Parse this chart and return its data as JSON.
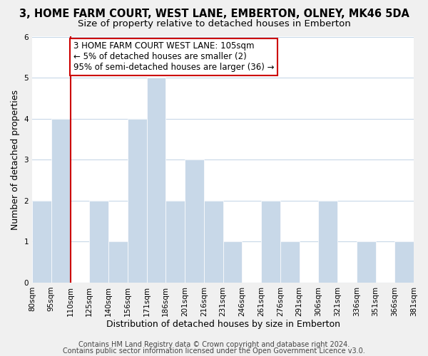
{
  "title": "3, HOME FARM COURT, WEST LANE, EMBERTON, OLNEY, MK46 5DA",
  "subtitle": "Size of property relative to detached houses in Emberton",
  "xlabel": "Distribution of detached houses by size in Emberton",
  "ylabel": "Number of detached properties",
  "bar_color": "#c8d8e8",
  "plot_bg_color": "#ffffff",
  "background_color": "#f0f0f0",
  "grid_color": "#c8d8e8",
  "vline_color": "#cc0000",
  "annotation_box_edge": "#cc0000",
  "annotation_box_color": "#ffffff",
  "bin_labels": [
    "80sqm",
    "95sqm",
    "110sqm",
    "125sqm",
    "140sqm",
    "156sqm",
    "171sqm",
    "186sqm",
    "201sqm",
    "216sqm",
    "231sqm",
    "246sqm",
    "261sqm",
    "276sqm",
    "291sqm",
    "306sqm",
    "321sqm",
    "336sqm",
    "351sqm",
    "366sqm",
    "381sqm"
  ],
  "bar_heights": [
    2,
    4,
    0,
    2,
    1,
    4,
    5,
    2,
    3,
    2,
    1,
    0,
    2,
    1,
    0,
    2,
    0,
    1,
    0,
    1
  ],
  "ylim": [
    0,
    6
  ],
  "yticks": [
    0,
    1,
    2,
    3,
    4,
    5,
    6
  ],
  "vline_position": 2,
  "annotation_text": "3 HOME FARM COURT WEST LANE: 105sqm\n← 5% of detached houses are smaller (2)\n95% of semi-detached houses are larger (36) →",
  "footer1": "Contains HM Land Registry data © Crown copyright and database right 2024.",
  "footer2": "Contains public sector information licensed under the Open Government Licence v3.0.",
  "title_fontsize": 10.5,
  "subtitle_fontsize": 9.5,
  "axis_label_fontsize": 9,
  "tick_fontsize": 7.5,
  "annotation_fontsize": 8.5,
  "footer_fontsize": 7
}
